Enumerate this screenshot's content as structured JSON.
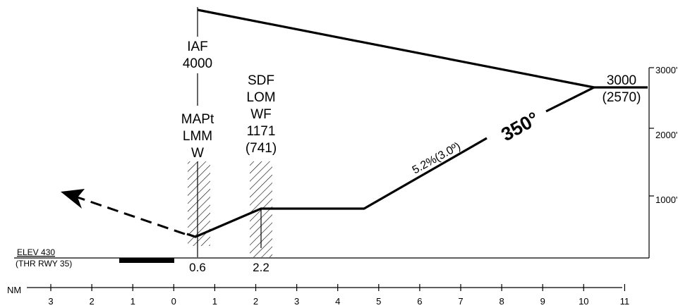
{
  "fixes": {
    "iaf": {
      "name": "IAF",
      "altitude": "4000"
    },
    "mapt": {
      "line1": "MAPt",
      "line2": "LMM",
      "line3": "W"
    },
    "sdf": {
      "line1": "SDF",
      "line2": "LOM",
      "line3": "WF",
      "altitude": "1171",
      "height": "(741)"
    },
    "start": {
      "altitude": "3000",
      "height": "(2570)"
    }
  },
  "descent": {
    "gradient": "5.2%(3.0º)",
    "course": "350°"
  },
  "aerodrome": {
    "elev": "ELEV  430",
    "threshold": "(THR RWY 35)"
  },
  "distances": {
    "mapt": "0.6",
    "sdf": "2.2"
  },
  "altitude_scale": [
    "3000'",
    "2000'",
    "1000'"
  ],
  "nm_scale": {
    "unit": "NM",
    "ticks": [
      "3",
      "2",
      "1",
      "0",
      "1",
      "2",
      "3",
      "4",
      "5",
      "6",
      "7",
      "8",
      "9",
      "10",
      "11"
    ]
  },
  "colors": {
    "ink": "#000000",
    "paper": "#ffffff"
  }
}
